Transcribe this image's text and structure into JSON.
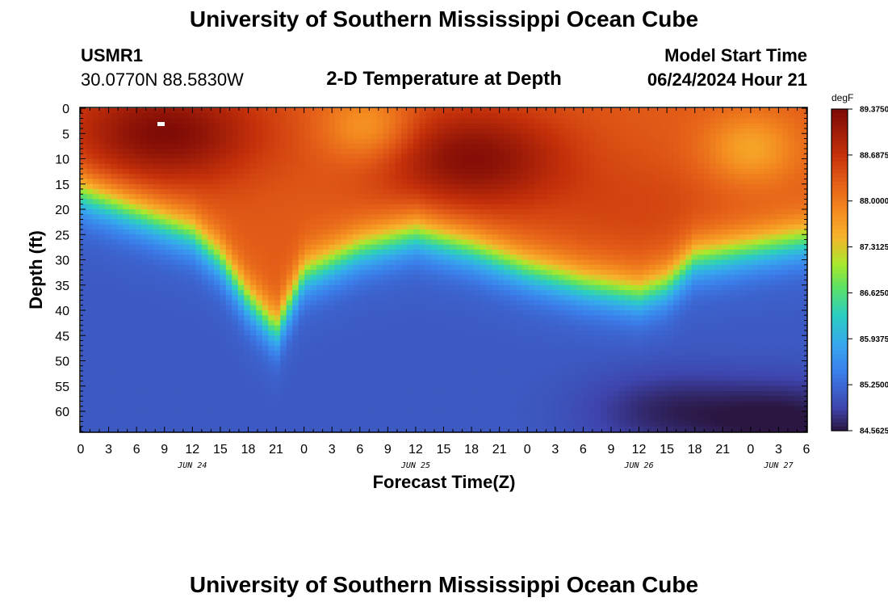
{
  "header": {
    "title": "University of Southern Mississippi Ocean Cube",
    "station_id": "USMR1",
    "coords": "30.0770N  88.5830W",
    "plot_title": "2-D Temperature at Depth",
    "model_start_label": "Model Start Time",
    "model_start_value": "06/24/2024 Hour 21"
  },
  "footer": {
    "title": "University of Southern Mississippi Ocean Cube"
  },
  "chart_data": {
    "type": "heatmap",
    "title": "2-D Temperature at Depth",
    "xlabel": "Forecast Time(Z)",
    "ylabel": "Depth (ft)",
    "x_hours_range": [
      0,
      78
    ],
    "ylim": [
      0,
      64
    ],
    "x_tick_labels": [
      "0",
      "3",
      "6",
      "9",
      "12",
      "15",
      "18",
      "21",
      "0",
      "3",
      "6",
      "9",
      "12",
      "15",
      "18",
      "21",
      "0",
      "3",
      "6",
      "9",
      "12",
      "15",
      "18",
      "21",
      "0",
      "3",
      "6"
    ],
    "y_ticks": [
      0,
      5,
      10,
      15,
      20,
      25,
      30,
      35,
      40,
      45,
      50,
      55,
      60
    ],
    "date_labels": [
      {
        "label": "JUN 24",
        "hour": 12
      },
      {
        "label": "JUN 25",
        "hour": 36
      },
      {
        "label": "JUN 26",
        "hour": 60
      },
      {
        "label": "JUN 27",
        "hour": 75
      }
    ],
    "colorbar": {
      "unit": "degF",
      "min": 84.5625,
      "max": 89.375,
      "tick_labels": [
        "89.3750",
        "88.6875",
        "88.0000",
        "87.3125",
        "86.6250",
        "85.9375",
        "85.2500",
        "84.5625"
      ]
    },
    "thermocline": {
      "hours": [
        0,
        6,
        12,
        15,
        18,
        21,
        24,
        30,
        36,
        42,
        48,
        54,
        60,
        63,
        66,
        72,
        78
      ],
      "depth": [
        17,
        21,
        25,
        30,
        38,
        44,
        33,
        28,
        25,
        28,
        32,
        35,
        37,
        35,
        30,
        28,
        26
      ],
      "upper_temp_degF": 88.3,
      "deep_temp_degF": 85.1
    },
    "warm_cores": [
      {
        "hour": 9,
        "depth": 5,
        "temp_degF": 89.35
      },
      {
        "hour": 42,
        "depth": 10,
        "temp_degF": 89.3
      },
      {
        "hour": 60,
        "depth": 20,
        "temp_degF": 88.5
      }
    ],
    "cool_spots": [
      {
        "hour": 31,
        "depth": 4,
        "temp_degF": 87.6
      },
      {
        "hour": 72,
        "depth": 8,
        "temp_degF": 87.6
      }
    ],
    "cold_cores": [
      {
        "hour": 76,
        "depth": 62,
        "temp_degF": 84.56
      },
      {
        "hour": 63,
        "depth": 60,
        "temp_degF": 84.7
      }
    ]
  }
}
